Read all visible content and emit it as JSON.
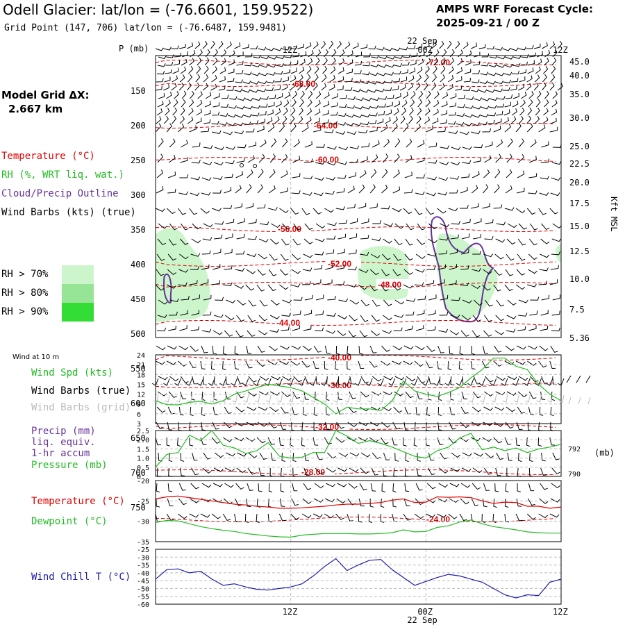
{
  "header": {
    "title": "Odell Glacier:  lat/lon = (-76.6601, 159.9522)",
    "subtitle": "Grid Point (147, 706) lat/lon = (-76.6487, 159.9481)",
    "cycle_line1": "AMPS WRF Forecast Cycle:",
    "cycle_line2": "2025-09-21 / 00  Z"
  },
  "grid": {
    "line1": "Model Grid ΔX:",
    "line2": "2.667 km"
  },
  "legend": {
    "temperature": "Temperature (°C)",
    "rh": "RH (%, WRT liq. wat.)",
    "cloud": "Cloud/Precip Outline",
    "wind": "Wind Barbs (kts) (true)",
    "rh70": "RH > 70%",
    "rh80": "RH > 80%",
    "rh90": "RH > 90%",
    "rh70_color": "#ccf5cc",
    "rh80_color": "#96e596",
    "rh90_color": "#33dd33"
  },
  "colors": {
    "temp": "#dd0000",
    "green": "#22bb22",
    "purple": "#663399",
    "blue": "#1a1aaa",
    "red_line": "#dd0000"
  },
  "time_axis": {
    "top_labels": [
      "12Z",
      "00Z",
      "12Z"
    ],
    "bottom_labels": [
      "12Z",
      "00Z",
      "12Z"
    ],
    "date_label": "22 Sep",
    "p_unit": "P (mb)"
  },
  "chart_data": [
    {
      "type": "contour",
      "name": "Vertical cross-section",
      "yaxis_pressure_mb": [
        150,
        200,
        250,
        300,
        350,
        400,
        450,
        500,
        550,
        600,
        650,
        700,
        750
      ],
      "yaxis_kft": [
        "45.0",
        "40.0",
        "35.0",
        "30.0",
        "25.0",
        "22.5",
        "20.0",
        "17.5",
        "15.0",
        "12.5",
        "10.0",
        "7.5",
        "5.36"
      ],
      "yaxis_kft_label": "Kft MSL",
      "isotherms": [
        {
          "label": "-72.00",
          "p": 110
        },
        {
          "label": "-68.00",
          "p": 141
        },
        {
          "label": "-64.00",
          "p": 201
        },
        {
          "label": "-60.00",
          "p": 250
        },
        {
          "label": "-56.00",
          "p": 350
        },
        {
          "label": "-52.00",
          "p": 400
        },
        {
          "label": "-48.00",
          "p": 430
        },
        {
          "label": "-44.00",
          "p": 485
        },
        {
          "label": "-40.00",
          "p": 535
        },
        {
          "label": "-36.00",
          "p": 575
        },
        {
          "label": "-32.00",
          "p": 635
        },
        {
          "label": "-28.00",
          "p": 700
        },
        {
          "label": "-24.00",
          "p": 768
        }
      ]
    },
    {
      "type": "line",
      "name": "Wind at 10 m",
      "title": "Wind at 10 m",
      "series_labels": [
        "Wind Spd (kts)",
        "Wind Barbs (true)",
        "Wind Barbs (grid)"
      ],
      "yticks": [
        3,
        6,
        9,
        12,
        15,
        18,
        21,
        24
      ],
      "ylim": [
        3,
        24
      ],
      "hours": [
        0,
        1,
        2,
        3,
        4,
        5,
        6,
        7,
        8,
        9,
        10,
        11,
        12,
        13,
        14,
        15,
        16,
        17,
        18,
        19,
        20,
        21,
        22,
        23,
        24,
        25,
        26,
        27,
        28,
        29,
        30,
        31,
        32,
        33,
        34,
        35,
        36
      ],
      "values": [
        10,
        8.8,
        8.7,
        9.5,
        9.8,
        9,
        10,
        12,
        13,
        14,
        15,
        14.5,
        14,
        13,
        11,
        9,
        6,
        8,
        7.5,
        7.5,
        7,
        10,
        16,
        13,
        12,
        11.3,
        12.5,
        14,
        17,
        19.5,
        23,
        23,
        20.5,
        19.5,
        15,
        12,
        10
      ]
    },
    {
      "type": "line",
      "name": "Precip and Pressure",
      "series_labels": [
        "Precip (mm)",
        "liq. equiv.",
        "1-hr accum",
        "Pressure (mb)"
      ],
      "yticks": [
        "0",
        "0.5",
        "1.0",
        "1.5",
        "2.0",
        "2.5"
      ],
      "ylim": [
        0,
        2.5
      ],
      "pressure_ticks": [
        "792",
        "790"
      ],
      "pressure_unit": "(mb)",
      "hours": [
        0,
        1,
        2,
        3,
        4,
        5,
        6,
        7,
        8,
        9,
        10,
        11,
        12,
        13,
        14,
        15,
        16,
        17,
        18,
        19,
        20,
        21,
        22,
        23,
        24,
        25,
        26,
        27,
        28,
        29,
        30,
        31,
        32,
        33,
        34,
        35,
        36
      ],
      "values": [
        0.5,
        1.2,
        1.3,
        2.25,
        1.95,
        2.5,
        1.7,
        1.55,
        1.25,
        1.4,
        1.85,
        1.1,
        1.0,
        1.05,
        1.3,
        1.3,
        2.5,
        2.2,
        1.8,
        1.95,
        1.8,
        1.6,
        1.35,
        1.1,
        1.0,
        1.4,
        1.6,
        2.1,
        2.35,
        1.45,
        1.6,
        1.4,
        1.55,
        1.3,
        1.5,
        1.6,
        1.75
      ]
    },
    {
      "type": "line",
      "name": "Temperature and Dewpoint",
      "series_labels": [
        "Temperature (°C)",
        "Dewpoint (°C)"
      ],
      "yticks": [
        -20,
        -25,
        -30,
        -35
      ],
      "ylim": [
        -35,
        -20
      ],
      "hours": [
        0,
        1,
        2,
        3,
        4,
        5,
        6,
        7,
        8,
        9,
        10,
        11,
        12,
        13,
        14,
        15,
        16,
        17,
        18,
        19,
        20,
        21,
        22,
        23,
        24,
        25,
        26,
        27,
        28,
        29,
        30,
        31,
        32,
        33,
        34,
        35,
        36
      ],
      "series": [
        {
          "name": "Temperature",
          "values": [
            -24.5,
            -24,
            -23.8,
            -24.2,
            -24.6,
            -25,
            -25.4,
            -25.8,
            -26,
            -26.3,
            -26.5,
            -26.8,
            -26.8,
            -26.7,
            -26.5,
            -26.3,
            -26,
            -25.8,
            -25.8,
            -25.6,
            -25.4,
            -24.8,
            -24.5,
            -25.4,
            -25.3,
            -24,
            -24.1,
            -24,
            -24.2,
            -25,
            -25.6,
            -25.3,
            -25.4,
            -26.3,
            -26.3,
            -26.8,
            -26.5
          ]
        },
        {
          "name": "Dewpoint",
          "values": [
            -30.3,
            -29.8,
            -29.9,
            -30.6,
            -31.3,
            -31.8,
            -32.2,
            -32.5,
            -33,
            -33.3,
            -33.6,
            -33.8,
            -33.9,
            -33.4,
            -33.2,
            -33.0,
            -33.0,
            -33.0,
            -33.1,
            -33.1,
            -33.0,
            -32.8,
            -32.1,
            -32.6,
            -32.5,
            -31.5,
            -31.1,
            -30.2,
            -29.7,
            -30.6,
            -31.3,
            -31.7,
            -32.1,
            -32.6,
            -32.8,
            -32.9,
            -32.9
          ]
        }
      ]
    },
    {
      "type": "line",
      "name": "Wind Chill",
      "series_labels": [
        "Wind Chill T (°C)"
      ],
      "yticks": [
        -25,
        -30,
        -35,
        -40,
        -45,
        -50,
        -55,
        -60
      ],
      "ylim": [
        -60,
        -25
      ],
      "hours": [
        0,
        1,
        2,
        3,
        4,
        5,
        6,
        7,
        8,
        9,
        10,
        11,
        12,
        13,
        14,
        15,
        16,
        17,
        18,
        19,
        20,
        21,
        22,
        23,
        24,
        25,
        26,
        27,
        28,
        29,
        30,
        31,
        32,
        33,
        34,
        35,
        36
      ],
      "values": [
        -44,
        -38,
        -37.5,
        -40,
        -39,
        -44,
        -48,
        -47,
        -49,
        -50.5,
        -51,
        -50,
        -49,
        -47,
        -42,
        -36,
        -31,
        -38.5,
        -35,
        -32,
        -31.5,
        -38,
        -43,
        -48,
        -45.5,
        -43,
        -41,
        -42,
        -44,
        -46,
        -50,
        -54,
        -56,
        -54,
        -54.5,
        -46,
        -44
      ]
    }
  ]
}
